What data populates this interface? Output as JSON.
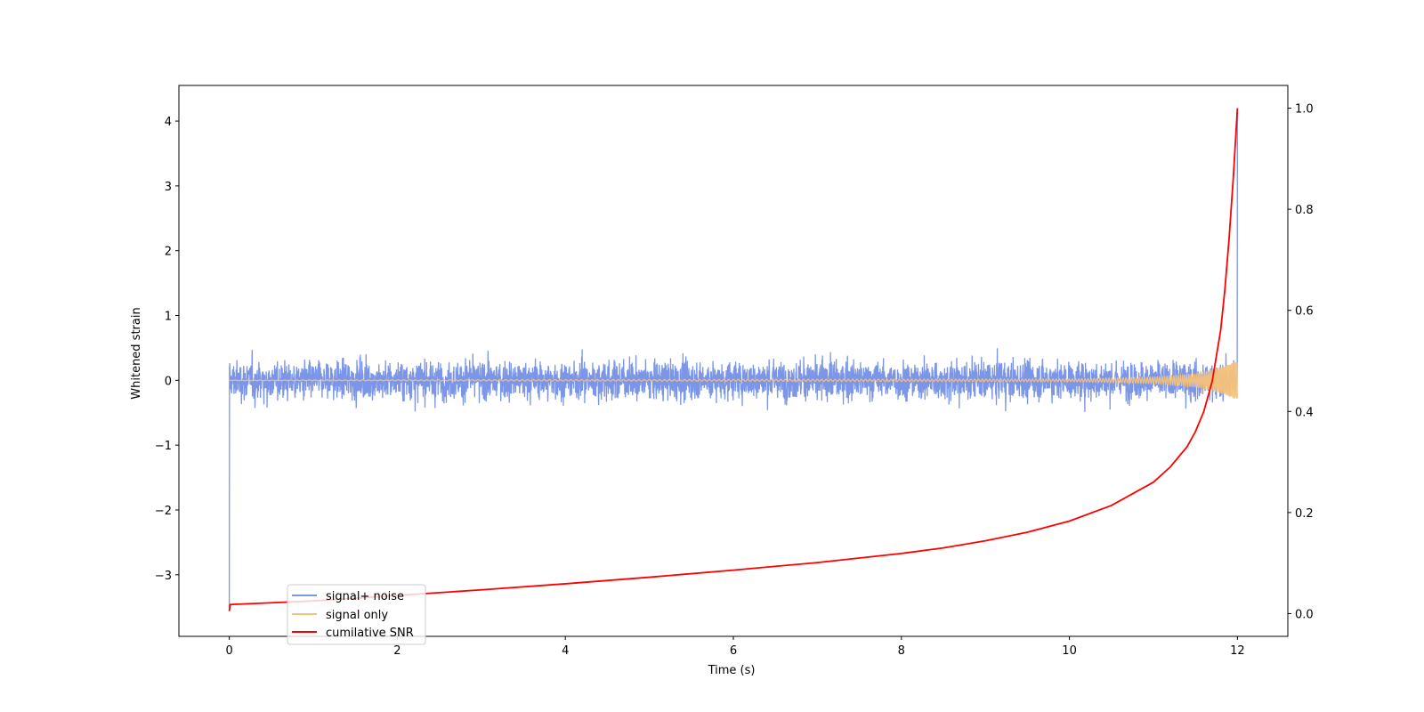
{
  "chart_data": {
    "type": "line",
    "xlabel": "Time (s)",
    "ylabel": "Whitened strain",
    "ylabel_right": "",
    "xlim": [
      -0.6,
      12.6
    ],
    "ylim": [
      -3.95,
      4.55
    ],
    "ylim_right": [
      -0.045,
      1.045
    ],
    "x_ticks": [
      0,
      2,
      4,
      6,
      8,
      10,
      12
    ],
    "y_ticks": [
      -3,
      -2,
      -1,
      0,
      1,
      2,
      3,
      4
    ],
    "y_ticks_right": [
      0.0,
      0.2,
      0.4,
      0.6,
      0.8,
      1.0
    ],
    "grid": false,
    "legend_position": "lower-left",
    "series": [
      {
        "name": "signal+ noise",
        "axis": "left",
        "color": "#7b96e8",
        "description": "noise band roughly ±0.6, peaks near ±1, initial dip to -3.5 at t=0, final spike to 4.2 at t=12",
        "x_range": [
          0,
          12
        ],
        "typical_amplitude": 0.6,
        "start_dip": -3.5,
        "end_spike": 4.2
      },
      {
        "name": "signal only",
        "axis": "left",
        "color": "#f5c27a",
        "description": "chirp oscillation, near 0 amplitude, growing to about 0.3 at t=12",
        "x": [
          0,
          10,
          11,
          11.5,
          11.8,
          12
        ],
        "amplitude": [
          0.005,
          0.02,
          0.05,
          0.1,
          0.2,
          0.3
        ]
      },
      {
        "name": "cumilative SNR",
        "axis": "right",
        "color": "#ff0000",
        "x": [
          0,
          0.01,
          1,
          2,
          3,
          4,
          5,
          6,
          7,
          8,
          8.5,
          9,
          9.5,
          10,
          10.5,
          11,
          11.2,
          11.4,
          11.5,
          11.6,
          11.7,
          11.8,
          11.85,
          11.9,
          11.95,
          12
        ],
        "y": [
          0.005,
          0.018,
          0.025,
          0.036,
          0.047,
          0.059,
          0.072,
          0.086,
          0.101,
          0.119,
          0.13,
          0.144,
          0.161,
          0.183,
          0.214,
          0.26,
          0.29,
          0.33,
          0.36,
          0.4,
          0.46,
          0.56,
          0.64,
          0.74,
          0.86,
          1.0
        ]
      }
    ]
  }
}
